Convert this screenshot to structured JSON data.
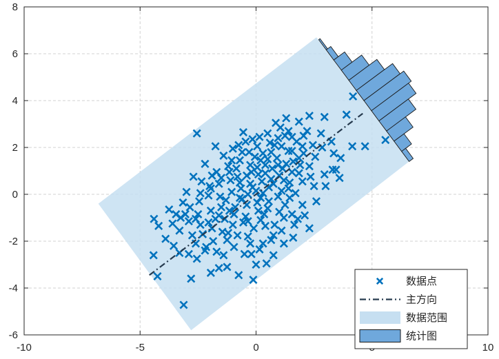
{
  "chart_data": {
    "type": "scatter",
    "title": "",
    "xlabel": "",
    "ylabel": "",
    "xlim": [
      -10,
      10
    ],
    "ylim": [
      -6,
      8
    ],
    "xticks": [
      -10,
      -5,
      0,
      5,
      10
    ],
    "yticks": [
      -6,
      -4,
      -2,
      0,
      2,
      4,
      6,
      8
    ],
    "xtick_labels": [
      "-10",
      "-5",
      "0",
      "5",
      "10"
    ],
    "ytick_labels": [
      "-6",
      "-4",
      "-2",
      "0",
      "2",
      "4",
      "6",
      "8"
    ],
    "grid": true,
    "legend_position": "bottom-right",
    "colors": {
      "points": "#0072BD",
      "main_direction": "#263A4E",
      "range_fill": "#C6DFF1",
      "histogram_fill": "#6FA8DC",
      "histogram_edge": "#1a1a1a",
      "grid": "#D0D0D0",
      "axis": "#262626"
    },
    "legend": [
      {
        "label": "数据点",
        "kind": "marker"
      },
      {
        "label": "主方向",
        "kind": "dashdot"
      },
      {
        "label": "数据范围",
        "kind": "patch-light"
      },
      {
        "label": "统计图",
        "kind": "patch-dark"
      }
    ],
    "principal_direction": {
      "start": [
        -4.6,
        -3.45
      ],
      "end": [
        4.6,
        3.45
      ]
    },
    "data_range_polygon": [
      [
        2.6,
        6.7
      ],
      [
        6.6,
        1.4
      ],
      [
        -2.8,
        -5.8
      ],
      [
        -6.8,
        -0.4
      ]
    ],
    "histogram": {
      "base_start": [
        2.7,
        6.6
      ],
      "base_end": [
        6.6,
        1.4
      ],
      "bin_counts": [
        3,
        10,
        24,
        45,
        62,
        80,
        88,
        82,
        65,
        42,
        22,
        9
      ]
    },
    "points": [
      [
        4.18,
        4.18
      ],
      [
        -3.12,
        -4.72
      ],
      [
        -2.55,
        2.6
      ],
      [
        5.58,
        2.32
      ],
      [
        -4.4,
        -1.05
      ],
      [
        -4.25,
        -3.5
      ],
      [
        -4.42,
        -2.6
      ],
      [
        -2.8,
        -3.6
      ],
      [
        -0.12,
        -3.65
      ],
      [
        4.7,
        2.05
      ],
      [
        4.15,
        2.05
      ],
      [
        3.9,
        3.4
      ],
      [
        3.3,
        1.05
      ],
      [
        3.6,
        0.7
      ],
      [
        2.95,
        3.3
      ],
      [
        -3.45,
        -0.85
      ],
      [
        -3.75,
        -0.65
      ],
      [
        -3.05,
        -0.85
      ],
      [
        -2.05,
        -1.2
      ],
      [
        -1.6,
        -3.15
      ],
      [
        -1.95,
        -3.35
      ],
      [
        -2.2,
        -2.4
      ],
      [
        -2.6,
        -2.1
      ],
      [
        -3.55,
        -2.2
      ],
      [
        -1.2,
        -1.65
      ],
      [
        1.8,
        -1.05
      ],
      [
        2.3,
        -1.45
      ],
      [
        0.75,
        -2.6
      ],
      [
        -0.25,
        -2.1
      ],
      [
        0.4,
        -1.35
      ],
      [
        -1.75,
        2.05
      ],
      [
        -0.75,
        2.1
      ],
      [
        -0.3,
        1.8
      ],
      [
        0.15,
        2.45
      ],
      [
        0.6,
        2.2
      ],
      [
        1.05,
        2.85
      ],
      [
        1.55,
        1.85
      ],
      [
        2.05,
        2.5
      ],
      [
        2.55,
        1.6
      ],
      [
        3.25,
        2.25
      ],
      [
        2.85,
        2.0
      ],
      [
        1.2,
        0.6
      ],
      [
        0.7,
        1.1
      ],
      [
        0.25,
        0.55
      ],
      [
        -0.2,
        0.95
      ],
      [
        -0.65,
        0.25
      ],
      [
        -1.1,
        0.6
      ],
      [
        -1.55,
        -0.1
      ],
      [
        -2.0,
        0.35
      ],
      [
        -2.45,
        -0.3
      ],
      [
        -2.9,
        -1.15
      ],
      [
        -1.35,
        -1.05
      ],
      [
        -0.9,
        -0.55
      ],
      [
        -0.45,
        -0.95
      ],
      [
        0.05,
        -0.35
      ],
      [
        0.5,
        -0.6
      ],
      [
        0.95,
        -0.1
      ],
      [
        1.4,
        0.25
      ],
      [
        1.85,
        0.9
      ],
      [
        2.3,
        1.2
      ],
      [
        -0.7,
        1.45
      ],
      [
        -1.2,
        1.2
      ],
      [
        -1.7,
        0.95
      ],
      [
        -2.2,
        1.3
      ],
      [
        -0.35,
        -1.8
      ],
      [
        0.15,
        -2.35
      ],
      [
        0.65,
        -1.95
      ],
      [
        1.1,
        -1.55
      ],
      [
        1.55,
        -0.85
      ],
      [
        2.0,
        -0.45
      ],
      [
        2.5,
        0.35
      ],
      [
        2.95,
        0.85
      ],
      [
        3.35,
        1.75
      ],
      [
        3.65,
        1.55
      ],
      [
        0.9,
        1.55
      ],
      [
        0.4,
        1.25
      ],
      [
        -0.05,
        1.6
      ],
      [
        -0.55,
        2.65
      ],
      [
        0.85,
        3.05
      ],
      [
        1.3,
        3.25
      ],
      [
        1.75,
        2.25
      ],
      [
        2.2,
        2.7
      ],
      [
        -2.7,
        0.75
      ],
      [
        -3.15,
        -0.35
      ],
      [
        -3.3,
        -1.55
      ],
      [
        -2.75,
        -1.75
      ],
      [
        -2.3,
        -1.7
      ],
      [
        -1.85,
        -2.0
      ],
      [
        -1.4,
        -2.6
      ],
      [
        -0.95,
        -2.25
      ],
      [
        -0.5,
        -2.55
      ],
      [
        0.0,
        -3.0
      ],
      [
        0.45,
        -2.95
      ],
      [
        1.2,
        -1.0
      ],
      [
        1.6,
        -1.85
      ],
      [
        0.3,
        0.05
      ],
      [
        -0.15,
        0.3
      ],
      [
        -0.6,
        -0.2
      ],
      [
        -1.05,
        0.1
      ],
      [
        -1.5,
        -0.55
      ],
      [
        -1.95,
        -0.7
      ],
      [
        -2.4,
        -1.3
      ],
      [
        0.75,
        0.45
      ],
      [
        1.15,
        1.1
      ],
      [
        1.6,
        1.4
      ],
      [
        2.05,
        1.75
      ],
      [
        2.45,
        2.1
      ],
      [
        2.8,
        2.6
      ],
      [
        -1.3,
        -0.25
      ],
      [
        -0.8,
        0.75
      ],
      [
        -0.35,
        0.0
      ],
      [
        0.1,
        0.85
      ],
      [
        0.55,
        0.3
      ],
      [
        1.0,
        0.8
      ],
      [
        1.45,
        0.5
      ],
      [
        1.9,
        1.25
      ],
      [
        2.35,
        0.75
      ],
      [
        -1.9,
        -1.45
      ],
      [
        -1.45,
        -1.6
      ],
      [
        -1.0,
        -1.3
      ],
      [
        -0.55,
        -1.2
      ],
      [
        -0.1,
        -1.45
      ],
      [
        0.35,
        -0.85
      ],
      [
        0.8,
        -1.3
      ],
      [
        1.25,
        -0.45
      ],
      [
        1.7,
        0.05
      ],
      [
        -2.5,
        -0.85
      ],
      [
        -2.05,
        -0.05
      ],
      [
        -1.6,
        0.45
      ],
      [
        -1.15,
        0.95
      ],
      [
        -0.7,
        0.5
      ],
      [
        -0.25,
        1.25
      ],
      [
        0.2,
        1.45
      ],
      [
        0.65,
        1.8
      ],
      [
        1.1,
        2.05
      ],
      [
        1.55,
        2.45
      ],
      [
        2.0,
        2.05
      ],
      [
        -3.6,
        -1.25
      ],
      [
        -3.9,
        -1.9
      ],
      [
        -4.2,
        -1.35
      ],
      [
        -3.3,
        -2.5
      ],
      [
        -2.9,
        -2.55
      ],
      [
        -2.55,
        -2.75
      ],
      [
        -0.75,
        -3.45
      ],
      [
        -1.25,
        -3.1
      ],
      [
        0.2,
        -1.1
      ],
      [
        -0.4,
        -0.45
      ],
      [
        0.4,
        0.9
      ],
      [
        1.3,
        1.3
      ],
      [
        0.0,
        0.15
      ],
      [
        -0.95,
        -0.85
      ],
      [
        -1.75,
        -1.05
      ],
      [
        -2.6,
        -1.05
      ],
      [
        -3.0,
        0.1
      ],
      [
        -2.35,
        0.55
      ],
      [
        -1.9,
        0.8
      ],
      [
        -1.4,
        1.65
      ],
      [
        -1.0,
        1.95
      ],
      [
        -0.45,
        2.25
      ],
      [
        0.05,
        2.05
      ],
      [
        0.5,
        2.6
      ],
      [
        0.95,
        2.4
      ],
      [
        1.4,
        2.7
      ],
      [
        1.85,
        3.1
      ],
      [
        2.3,
        3.35
      ],
      [
        -0.2,
        -2.55
      ],
      [
        0.3,
        -2.1
      ],
      [
        0.75,
        -1.75
      ],
      [
        1.2,
        -2.1
      ],
      [
        1.65,
        -1.3
      ],
      [
        2.1,
        -0.9
      ],
      [
        2.6,
        -0.3
      ],
      [
        3.0,
        0.35
      ],
      [
        3.45,
        1.05
      ],
      [
        -1.6,
        -0.9
      ],
      [
        -1.15,
        -0.7
      ],
      [
        -0.7,
        -0.15
      ],
      [
        -0.25,
        0.45
      ],
      [
        0.2,
        -0.15
      ],
      [
        0.65,
        0.65
      ],
      [
        1.1,
        0.15
      ],
      [
        1.55,
        0.95
      ],
      [
        2.0,
        0.55
      ],
      [
        -0.85,
        1.1
      ],
      [
        -0.4,
        0.8
      ],
      [
        0.05,
        1.15
      ],
      [
        0.5,
        1.5
      ],
      [
        0.95,
        1.25
      ],
      [
        1.4,
        1.85
      ],
      [
        1.85,
        1.55
      ],
      [
        -2.15,
        -2.25
      ],
      [
        -1.7,
        -2.45
      ],
      [
        -1.25,
        -1.95
      ],
      [
        -0.8,
        -1.75
      ],
      [
        -0.35,
        -1.15
      ],
      [
        0.1,
        -0.7
      ],
      [
        0.55,
        -0.3
      ],
      [
        1.0,
        -0.75
      ],
      [
        1.45,
        -0.15
      ],
      [
        -2.85,
        -0.55
      ],
      [
        -3.25,
        -1.0
      ],
      [
        -2.4,
        0.05
      ],
      [
        -1.95,
        0.25
      ],
      [
        -1.5,
        0.7
      ],
      [
        -1.05,
        1.45
      ],
      [
        -0.6,
        1.8
      ],
      [
        -0.15,
        2.35
      ],
      [
        0.3,
        1.75
      ],
      [
        0.8,
        2.1
      ],
      [
        1.25,
        2.5
      ]
    ]
  }
}
